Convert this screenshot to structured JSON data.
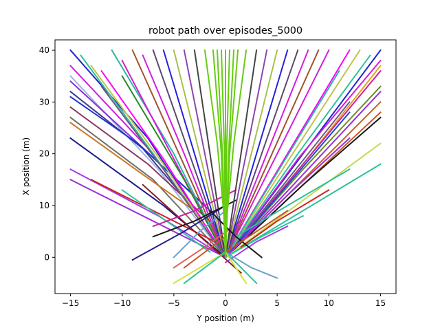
{
  "chart_data": {
    "type": "line",
    "title": "robot path over episodes_5000",
    "xlabel": "Y position (m)",
    "ylabel": "X position (m)",
    "xlim": [
      -16.5,
      16.5
    ],
    "ylim": [
      -7.0,
      42.0
    ],
    "xticks": [
      "−15",
      "−10",
      "−5",
      "0",
      "5",
      "10",
      "15"
    ],
    "yticks": [
      "0",
      "10",
      "20",
      "30",
      "40"
    ],
    "xtick_values": [
      -15,
      -10,
      -5,
      0,
      5,
      10,
      15
    ],
    "ytick_values": [
      0,
      10,
      20,
      30,
      40
    ],
    "grid": false,
    "legend": "none",
    "background": "#ffffff",
    "axes_color": "#000000",
    "line_width": 2,
    "series": [
      {
        "color": "#2222cc",
        "x": [
          -15,
          -7.5,
          0
        ],
        "y": [
          40,
          23,
          0
        ]
      },
      {
        "color": "#d31ae0",
        "x": [
          -15,
          -7.0,
          0
        ],
        "y": [
          37,
          20,
          0
        ]
      },
      {
        "color": "#9ab5e0",
        "x": [
          -15,
          -6.5,
          0
        ],
        "y": [
          35,
          17,
          0
        ]
      },
      {
        "color": "#8a2be2",
        "x": [
          -15,
          -9.0,
          -1.5
        ],
        "y": [
          34,
          23,
          9
        ]
      },
      {
        "color": "#3c3c8c",
        "x": [
          -15,
          -8.0,
          -2.5
        ],
        "y": [
          32,
          21,
          8
        ]
      },
      {
        "color": "#2233cc",
        "x": [
          -15,
          -8.5,
          -2.0
        ],
        "y": [
          31,
          22,
          10
        ]
      },
      {
        "color": "#8b3a62",
        "x": [
          -15,
          -7.5,
          -1.0
        ],
        "y": [
          29,
          18,
          6
        ]
      },
      {
        "color": "#6e6e6e",
        "x": [
          -15,
          -7.0,
          0
        ],
        "y": [
          27,
          15,
          0
        ]
      },
      {
        "color": "#cc7722",
        "x": [
          -15,
          -8.0,
          -3.0
        ],
        "y": [
          26,
          16,
          9
        ]
      },
      {
        "color": "#1a1a8c",
        "x": [
          -15,
          -6.0,
          0
        ],
        "y": [
          23,
          10,
          0
        ]
      },
      {
        "color": "#a23be8",
        "x": [
          -15,
          -6.5,
          0
        ],
        "y": [
          17,
          8,
          0
        ]
      },
      {
        "color": "#9b30d9",
        "x": [
          -15,
          -7.0,
          0
        ],
        "y": [
          15,
          7,
          0
        ]
      },
      {
        "color": "#2cc19a",
        "x": [
          -14,
          -7.0,
          0
        ],
        "y": [
          39,
          20,
          0
        ]
      },
      {
        "color": "#c3c34c",
        "x": [
          -13,
          -6.0,
          0
        ],
        "y": [
          37,
          18,
          0
        ]
      },
      {
        "color": "#ff00ff",
        "x": [
          -12,
          -6.0,
          0
        ],
        "y": [
          36,
          19,
          0
        ]
      },
      {
        "color": "#6a5a8a",
        "x": [
          -12,
          -6.0,
          0
        ],
        "y": [
          33,
          17,
          0
        ]
      },
      {
        "color": "#2bb6a0",
        "x": [
          -11,
          -5.0,
          0
        ],
        "y": [
          40,
          20,
          0
        ]
      },
      {
        "color": "#d21dd4",
        "x": [
          -10,
          -5.0,
          0
        ],
        "y": [
          38,
          19,
          0
        ]
      },
      {
        "color": "#228b22",
        "x": [
          -10,
          -4.0,
          0
        ],
        "y": [
          35,
          15,
          0
        ]
      },
      {
        "color": "#a0522d",
        "x": [
          -9,
          -4.5,
          0
        ],
        "y": [
          40,
          20,
          0
        ]
      },
      {
        "color": "#d41ce0",
        "x": [
          -8,
          -4.0,
          0
        ],
        "y": [
          39,
          20,
          0
        ]
      },
      {
        "color": "#5a4a6e",
        "x": [
          -7,
          -3.5,
          0
        ],
        "y": [
          40,
          20,
          0
        ]
      },
      {
        "color": "#2222dd",
        "x": [
          -6,
          -3.0,
          0
        ],
        "y": [
          40,
          20,
          0
        ]
      },
      {
        "color": "#a8c04a",
        "x": [
          -5,
          -2.5,
          0
        ],
        "y": [
          40,
          20,
          0
        ]
      },
      {
        "color": "#8e44ad",
        "x": [
          -4,
          -2.0,
          0
        ],
        "y": [
          40,
          20,
          0
        ]
      },
      {
        "color": "#444444",
        "x": [
          -3,
          -1.5,
          0
        ],
        "y": [
          40,
          20,
          0
        ]
      },
      {
        "color": "#cc2222",
        "x": [
          -13,
          -6.0,
          -1.0
        ],
        "y": [
          15,
          8,
          3
        ]
      },
      {
        "color": "#2cc19a",
        "x": [
          -10,
          -5.0,
          -1.5
        ],
        "y": [
          13,
          6,
          1
        ]
      },
      {
        "color": "#20208a",
        "x": [
          -9,
          -4.0,
          0
        ],
        "y": [
          -0.5,
          5,
          10
        ]
      },
      {
        "color": "#8b1a1a",
        "x": [
          -8,
          -3.0,
          1.5
        ],
        "y": [
          14,
          5,
          -3
        ]
      },
      {
        "color": "#cc2299",
        "x": [
          -7,
          -3.0,
          1.0
        ],
        "y": [
          6,
          9,
          13
        ]
      },
      {
        "color": "#1a1a1a",
        "x": [
          -7,
          -3.0,
          1.0
        ],
        "y": [
          4,
          7,
          11
        ]
      },
      {
        "color": "#e35c5c",
        "x": [
          -5,
          -2.0,
          1.5
        ],
        "y": [
          -2,
          2,
          7
        ]
      },
      {
        "color": "#6aa0c8",
        "x": [
          -5,
          -2.5,
          0
        ],
        "y": [
          0,
          5,
          9
        ]
      },
      {
        "color": "#d4e03c",
        "x": [
          -5,
          -2.5,
          0
        ],
        "y": [
          -5,
          -2,
          1
        ]
      },
      {
        "color": "#2cc19a",
        "x": [
          -4,
          -2.0,
          0
        ],
        "y": [
          -5,
          -2,
          1
        ]
      },
      {
        "color": "#cc5522",
        "x": [
          -4,
          -2.0,
          0
        ],
        "y": [
          -2,
          1,
          4
        ]
      },
      {
        "color": "#2222cc",
        "x": [
          15,
          7.5,
          0
        ],
        "y": [
          40,
          20,
          0
        ]
      },
      {
        "color": "#d31ae0",
        "x": [
          15,
          7.0,
          0
        ],
        "y": [
          38,
          19,
          0
        ]
      },
      {
        "color": "#e8a020",
        "x": [
          15,
          7.5,
          0
        ],
        "y": [
          37,
          18,
          0
        ]
      },
      {
        "color": "#cc2299",
        "x": [
          15,
          7.5,
          0
        ],
        "y": [
          36,
          18,
          0
        ]
      },
      {
        "color": "#6b8e23",
        "x": [
          15,
          7.5,
          0
        ],
        "y": [
          33,
          17,
          0
        ]
      },
      {
        "color": "#9b30d9",
        "x": [
          15,
          7.5,
          0
        ],
        "y": [
          32,
          16,
          0
        ]
      },
      {
        "color": "#c86428",
        "x": [
          15,
          7.5,
          0
        ],
        "y": [
          30,
          15,
          0
        ]
      },
      {
        "color": "#cc5522",
        "x": [
          15,
          7.5,
          0
        ],
        "y": [
          28,
          14,
          0
        ]
      },
      {
        "color": "#1a1a1a",
        "x": [
          15,
          7.5,
          0
        ],
        "y": [
          27,
          14,
          0
        ]
      },
      {
        "color": "#c3d94e",
        "x": [
          15,
          7.5,
          0
        ],
        "y": [
          22,
          11,
          0
        ]
      },
      {
        "color": "#2cc19a",
        "x": [
          15,
          7.5,
          0
        ],
        "y": [
          18,
          9,
          0
        ]
      },
      {
        "color": "#2cc19a",
        "x": [
          14,
          7.0,
          0
        ],
        "y": [
          39,
          20,
          0
        ]
      },
      {
        "color": "#c3c34c",
        "x": [
          13,
          6.5,
          0
        ],
        "y": [
          40,
          20,
          0
        ]
      },
      {
        "color": "#ff00ff",
        "x": [
          12,
          6.0,
          0
        ],
        "y": [
          40,
          20,
          0
        ]
      },
      {
        "color": "#6a5a8a",
        "x": [
          12,
          6.0,
          0
        ],
        "y": [
          30,
          15,
          0
        ]
      },
      {
        "color": "#2244dd",
        "x": [
          12,
          6.0,
          0
        ],
        "y": [
          28,
          14,
          0
        ]
      },
      {
        "color": "#9b30d9",
        "x": [
          12,
          6.0,
          0
        ],
        "y": [
          23,
          12,
          0
        ]
      },
      {
        "color": "#2bb6a0",
        "x": [
          11,
          5.5,
          0
        ],
        "y": [
          36,
          18,
          0
        ]
      },
      {
        "color": "#d21dd4",
        "x": [
          10,
          5.0,
          0
        ],
        "y": [
          40,
          20,
          0
        ]
      },
      {
        "color": "#a0522d",
        "x": [
          9,
          4.5,
          0
        ],
        "y": [
          40,
          20,
          0
        ]
      },
      {
        "color": "#d41ce0",
        "x": [
          8,
          4.0,
          0
        ],
        "y": [
          40,
          20,
          0
        ]
      },
      {
        "color": "#5a4a6e",
        "x": [
          7,
          3.5,
          0
        ],
        "y": [
          40,
          20,
          0
        ]
      },
      {
        "color": "#2222dd",
        "x": [
          6,
          3.0,
          0
        ],
        "y": [
          40,
          20,
          0
        ]
      },
      {
        "color": "#a8c04a",
        "x": [
          5,
          2.5,
          0
        ],
        "y": [
          40,
          20,
          0
        ]
      },
      {
        "color": "#8e44ad",
        "x": [
          4,
          2.0,
          0
        ],
        "y": [
          40,
          20,
          0
        ]
      },
      {
        "color": "#444444",
        "x": [
          3,
          1.5,
          0
        ],
        "y": [
          40,
          20,
          0
        ]
      },
      {
        "color": "#2cc19a",
        "x": [
          12,
          6.0,
          1.0
        ],
        "y": [
          17,
          10,
          4
        ]
      },
      {
        "color": "#cc2222",
        "x": [
          10,
          5.0,
          1.5
        ],
        "y": [
          13,
          7,
          2
        ]
      },
      {
        "color": "#2cc19a",
        "x": [
          7.5,
          3.5,
          0
        ],
        "y": [
          8,
          4,
          0
        ]
      },
      {
        "color": "#a23be8",
        "x": [
          6,
          3.0,
          0
        ],
        "y": [
          6,
          3,
          -1
        ]
      },
      {
        "color": "#6aa0c8",
        "x": [
          5,
          2.5,
          0
        ],
        "y": [
          -4,
          -2,
          1
        ]
      },
      {
        "color": "#1a1a1a",
        "x": [
          3.5,
          1.0,
          -1.5
        ],
        "y": [
          0,
          4,
          9
        ]
      },
      {
        "color": "#cc5522",
        "x": [
          6,
          3.0,
          0
        ],
        "y": [
          9,
          5,
          1
        ]
      },
      {
        "color": "#2cc19a",
        "x": [
          3,
          1.5,
          0
        ],
        "y": [
          -5,
          -2,
          1
        ]
      },
      {
        "color": "#d4e03c",
        "x": [
          2,
          1.0,
          0
        ],
        "y": [
          -5,
          -2,
          1
        ]
      },
      {
        "color": "#66cc11",
        "x": [
          -1.2,
          -0.4,
          0
        ],
        "y": [
          40,
          20,
          0
        ]
      },
      {
        "color": "#66cc11",
        "x": [
          -0.8,
          -0.3,
          0
        ],
        "y": [
          40,
          20,
          0
        ]
      },
      {
        "color": "#66cc11",
        "x": [
          -0.4,
          -0.1,
          0
        ],
        "y": [
          40,
          20,
          0
        ]
      },
      {
        "color": "#66cc11",
        "x": [
          0,
          0,
          0
        ],
        "y": [
          40,
          20,
          0
        ]
      },
      {
        "color": "#66cc11",
        "x": [
          0.4,
          0.1,
          0
        ],
        "y": [
          40,
          20,
          0
        ]
      },
      {
        "color": "#66cc11",
        "x": [
          0.8,
          0.3,
          0
        ],
        "y": [
          40,
          20,
          0
        ]
      },
      {
        "color": "#66cc11",
        "x": [
          1.2,
          0.4,
          0
        ],
        "y": [
          40,
          20,
          0
        ]
      },
      {
        "color": "#66cc11",
        "x": [
          -2.0,
          -0.8,
          0
        ],
        "y": [
          40,
          22,
          5
        ]
      },
      {
        "color": "#66cc11",
        "x": [
          2.0,
          0.8,
          0
        ],
        "y": [
          40,
          22,
          5
        ]
      }
    ]
  }
}
